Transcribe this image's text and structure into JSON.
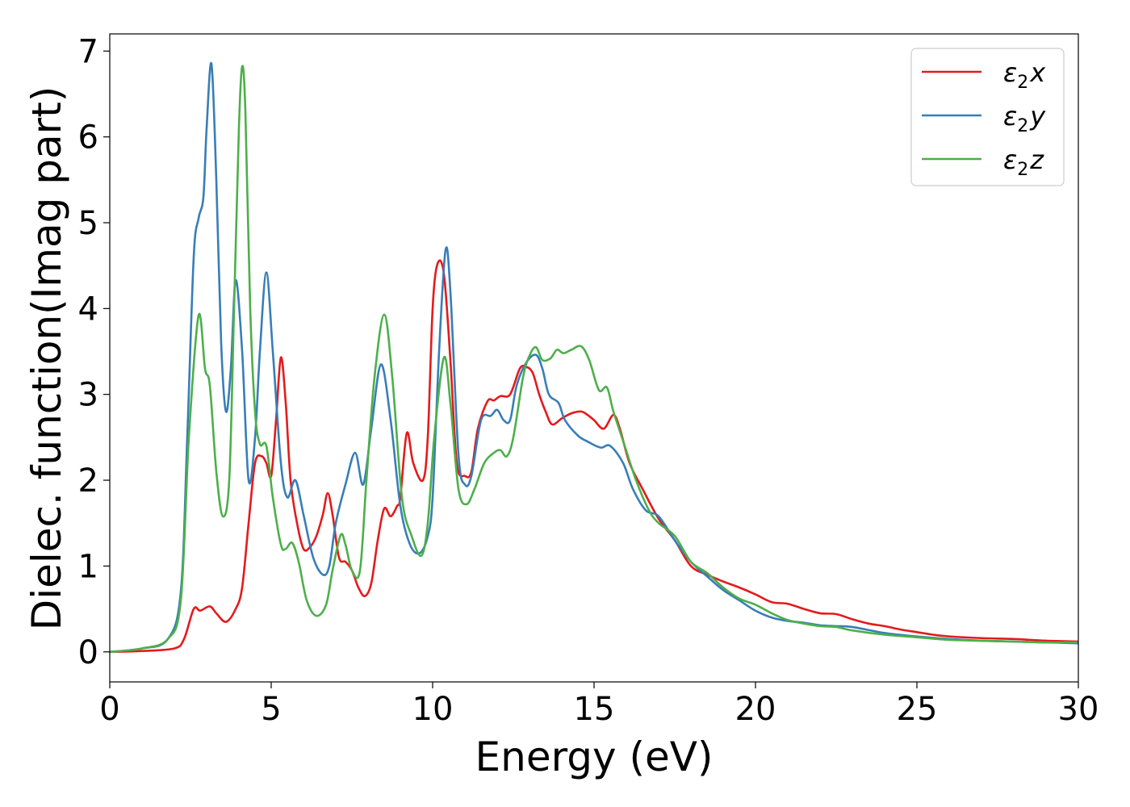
{
  "chart_data": {
    "type": "line",
    "xlabel": "Energy (eV)",
    "ylabel": "Dielec. function(Imag part)",
    "xlim": [
      0,
      30
    ],
    "ylim": [
      -0.35,
      7.2
    ],
    "xticks": [
      "0",
      "5",
      "10",
      "15",
      "20",
      "25",
      "30"
    ],
    "yticks": [
      "0",
      "1",
      "2",
      "3",
      "4",
      "5",
      "6",
      "7"
    ],
    "grid": false,
    "legend_position": "top-right",
    "series": [
      {
        "name": "ε2x",
        "legend": {
          "base": "ε",
          "sub": "2",
          "suffix": "x"
        },
        "color": "#e41a1c",
        "points": [
          [
            0,
            0
          ],
          [
            1,
            0.01
          ],
          [
            2,
            0.04
          ],
          [
            2.3,
            0.15
          ],
          [
            2.6,
            0.5
          ],
          [
            2.8,
            0.48
          ],
          [
            3.1,
            0.53
          ],
          [
            3.3,
            0.45
          ],
          [
            3.6,
            0.35
          ],
          [
            3.9,
            0.5
          ],
          [
            4.1,
            0.75
          ],
          [
            4.3,
            1.5
          ],
          [
            4.5,
            2.2
          ],
          [
            4.7,
            2.28
          ],
          [
            4.85,
            2.2
          ],
          [
            5.0,
            2.05
          ],
          [
            5.15,
            2.7
          ],
          [
            5.3,
            3.43
          ],
          [
            5.45,
            2.9
          ],
          [
            5.6,
            2.0
          ],
          [
            5.8,
            1.5
          ],
          [
            6.0,
            1.2
          ],
          [
            6.2,
            1.22
          ],
          [
            6.4,
            1.35
          ],
          [
            6.6,
            1.6
          ],
          [
            6.75,
            1.85
          ],
          [
            6.9,
            1.6
          ],
          [
            7.1,
            1.1
          ],
          [
            7.3,
            1.05
          ],
          [
            7.5,
            0.95
          ],
          [
            7.7,
            0.75
          ],
          [
            7.9,
            0.65
          ],
          [
            8.1,
            0.8
          ],
          [
            8.3,
            1.3
          ],
          [
            8.5,
            1.67
          ],
          [
            8.7,
            1.58
          ],
          [
            8.9,
            1.7
          ],
          [
            9.0,
            1.8
          ],
          [
            9.2,
            2.55
          ],
          [
            9.4,
            2.2
          ],
          [
            9.7,
            2.0
          ],
          [
            9.85,
            2.5
          ],
          [
            10.0,
            4.0
          ],
          [
            10.15,
            4.52
          ],
          [
            10.35,
            4.4
          ],
          [
            10.55,
            3.4
          ],
          [
            10.75,
            2.2
          ],
          [
            11.0,
            2.05
          ],
          [
            11.2,
            2.1
          ],
          [
            11.4,
            2.6
          ],
          [
            11.7,
            2.92
          ],
          [
            11.9,
            2.93
          ],
          [
            12.1,
            2.98
          ],
          [
            12.4,
            3.0
          ],
          [
            12.7,
            3.3
          ],
          [
            12.9,
            3.32
          ],
          [
            13.1,
            3.25
          ],
          [
            13.3,
            3.0
          ],
          [
            13.5,
            2.8
          ],
          [
            13.7,
            2.65
          ],
          [
            14.0,
            2.72
          ],
          [
            14.3,
            2.78
          ],
          [
            14.6,
            2.8
          ],
          [
            14.8,
            2.76
          ],
          [
            15.0,
            2.7
          ],
          [
            15.3,
            2.6
          ],
          [
            15.6,
            2.76
          ],
          [
            15.8,
            2.6
          ],
          [
            16.1,
            2.2
          ],
          [
            16.5,
            1.9
          ],
          [
            17.0,
            1.55
          ],
          [
            17.5,
            1.3
          ],
          [
            18.0,
            1.0
          ],
          [
            18.5,
            0.9
          ],
          [
            19.0,
            0.82
          ],
          [
            19.5,
            0.75
          ],
          [
            20.0,
            0.67
          ],
          [
            20.5,
            0.58
          ],
          [
            21.0,
            0.56
          ],
          [
            21.5,
            0.5
          ],
          [
            22.0,
            0.45
          ],
          [
            22.5,
            0.44
          ],
          [
            23.0,
            0.38
          ],
          [
            23.5,
            0.33
          ],
          [
            24.0,
            0.3
          ],
          [
            24.5,
            0.26
          ],
          [
            25.0,
            0.23
          ],
          [
            25.5,
            0.2
          ],
          [
            26.0,
            0.18
          ],
          [
            27.0,
            0.16
          ],
          [
            28.0,
            0.15
          ],
          [
            29.0,
            0.13
          ],
          [
            30.0,
            0.12
          ]
        ]
      },
      {
        "name": "ε2y",
        "legend": {
          "base": "ε",
          "sub": "2",
          "suffix": "y"
        },
        "color": "#377eb8",
        "points": [
          [
            0,
            0
          ],
          [
            1,
            0.04
          ],
          [
            1.8,
            0.15
          ],
          [
            2.2,
            0.7
          ],
          [
            2.4,
            2.5
          ],
          [
            2.6,
            4.6
          ],
          [
            2.75,
            5.05
          ],
          [
            2.9,
            5.3
          ],
          [
            3.0,
            6.1
          ],
          [
            3.15,
            6.85
          ],
          [
            3.3,
            5.5
          ],
          [
            3.45,
            3.6
          ],
          [
            3.6,
            2.8
          ],
          [
            3.75,
            3.3
          ],
          [
            3.9,
            4.33
          ],
          [
            4.1,
            3.5
          ],
          [
            4.3,
            2.0
          ],
          [
            4.5,
            2.5
          ],
          [
            4.65,
            3.5
          ],
          [
            4.85,
            4.42
          ],
          [
            5.05,
            3.5
          ],
          [
            5.3,
            2.2
          ],
          [
            5.5,
            1.8
          ],
          [
            5.75,
            2.0
          ],
          [
            6.0,
            1.6
          ],
          [
            6.3,
            1.1
          ],
          [
            6.6,
            0.9
          ],
          [
            6.8,
            1.0
          ],
          [
            7.0,
            1.5
          ],
          [
            7.3,
            1.95
          ],
          [
            7.6,
            2.32
          ],
          [
            7.85,
            1.95
          ],
          [
            8.1,
            2.6
          ],
          [
            8.4,
            3.35
          ],
          [
            8.7,
            2.7
          ],
          [
            9.0,
            1.7
          ],
          [
            9.3,
            1.25
          ],
          [
            9.6,
            1.15
          ],
          [
            9.85,
            1.35
          ],
          [
            10.0,
            1.8
          ],
          [
            10.2,
            3.5
          ],
          [
            10.4,
            4.68
          ],
          [
            10.55,
            4.2
          ],
          [
            10.8,
            2.3
          ],
          [
            11.0,
            1.95
          ],
          [
            11.2,
            2.05
          ],
          [
            11.5,
            2.7
          ],
          [
            11.8,
            2.75
          ],
          [
            12.0,
            2.82
          ],
          [
            12.2,
            2.7
          ],
          [
            12.4,
            2.7
          ],
          [
            12.6,
            3.1
          ],
          [
            12.9,
            3.37
          ],
          [
            13.2,
            3.46
          ],
          [
            13.4,
            3.3
          ],
          [
            13.6,
            3.0
          ],
          [
            13.9,
            2.9
          ],
          [
            14.1,
            2.7
          ],
          [
            14.5,
            2.52
          ],
          [
            14.8,
            2.45
          ],
          [
            15.2,
            2.38
          ],
          [
            15.5,
            2.4
          ],
          [
            15.9,
            2.2
          ],
          [
            16.2,
            1.9
          ],
          [
            16.6,
            1.65
          ],
          [
            17.0,
            1.58
          ],
          [
            17.5,
            1.3
          ],
          [
            18.0,
            1.05
          ],
          [
            18.5,
            0.88
          ],
          [
            19.0,
            0.72
          ],
          [
            19.5,
            0.6
          ],
          [
            20.0,
            0.48
          ],
          [
            20.5,
            0.4
          ],
          [
            21.0,
            0.36
          ],
          [
            21.5,
            0.34
          ],
          [
            22.0,
            0.31
          ],
          [
            22.5,
            0.3
          ],
          [
            23.0,
            0.29
          ],
          [
            24.0,
            0.22
          ],
          [
            25.0,
            0.18
          ],
          [
            26.0,
            0.15
          ],
          [
            27.0,
            0.13
          ],
          [
            28.0,
            0.12
          ],
          [
            29.0,
            0.11
          ],
          [
            30.0,
            0.1
          ]
        ]
      },
      {
        "name": "ε2z",
        "legend": {
          "base": "ε",
          "sub": "2",
          "suffix": "z"
        },
        "color": "#4daf4a",
        "points": [
          [
            0,
            0
          ],
          [
            1,
            0.04
          ],
          [
            1.8,
            0.15
          ],
          [
            2.2,
            0.6
          ],
          [
            2.45,
            2.5
          ],
          [
            2.75,
            3.92
          ],
          [
            2.95,
            3.3
          ],
          [
            3.1,
            3.1
          ],
          [
            3.3,
            2.1
          ],
          [
            3.5,
            1.58
          ],
          [
            3.7,
            2.0
          ],
          [
            3.85,
            4.0
          ],
          [
            4.0,
            6.1
          ],
          [
            4.1,
            6.82
          ],
          [
            4.2,
            6.3
          ],
          [
            4.35,
            4.0
          ],
          [
            4.5,
            2.8
          ],
          [
            4.65,
            2.42
          ],
          [
            4.85,
            2.4
          ],
          [
            5.05,
            1.8
          ],
          [
            5.3,
            1.25
          ],
          [
            5.45,
            1.2
          ],
          [
            5.65,
            1.27
          ],
          [
            5.85,
            1.05
          ],
          [
            6.1,
            0.6
          ],
          [
            6.4,
            0.42
          ],
          [
            6.7,
            0.55
          ],
          [
            6.9,
            0.95
          ],
          [
            7.15,
            1.36
          ],
          [
            7.3,
            1.25
          ],
          [
            7.5,
            0.95
          ],
          [
            7.75,
            0.95
          ],
          [
            7.95,
            2.0
          ],
          [
            8.2,
            3.2
          ],
          [
            8.5,
            3.93
          ],
          [
            8.75,
            3.2
          ],
          [
            9.05,
            1.8
          ],
          [
            9.35,
            1.35
          ],
          [
            9.65,
            1.12
          ],
          [
            9.85,
            1.5
          ],
          [
            10.05,
            2.5
          ],
          [
            10.35,
            3.43
          ],
          [
            10.55,
            2.9
          ],
          [
            10.8,
            1.9
          ],
          [
            11.05,
            1.72
          ],
          [
            11.3,
            1.9
          ],
          [
            11.6,
            2.2
          ],
          [
            11.9,
            2.32
          ],
          [
            12.1,
            2.35
          ],
          [
            12.3,
            2.28
          ],
          [
            12.5,
            2.5
          ],
          [
            12.8,
            3.2
          ],
          [
            13.0,
            3.45
          ],
          [
            13.2,
            3.55
          ],
          [
            13.4,
            3.4
          ],
          [
            13.65,
            3.42
          ],
          [
            13.85,
            3.52
          ],
          [
            14.05,
            3.48
          ],
          [
            14.3,
            3.52
          ],
          [
            14.6,
            3.56
          ],
          [
            14.85,
            3.4
          ],
          [
            15.15,
            3.05
          ],
          [
            15.4,
            3.08
          ],
          [
            15.6,
            2.8
          ],
          [
            15.95,
            2.4
          ],
          [
            16.3,
            2.0
          ],
          [
            16.7,
            1.65
          ],
          [
            17.0,
            1.5
          ],
          [
            17.5,
            1.35
          ],
          [
            18.0,
            1.05
          ],
          [
            18.5,
            0.92
          ],
          [
            19.0,
            0.75
          ],
          [
            19.5,
            0.62
          ],
          [
            20.0,
            0.55
          ],
          [
            20.5,
            0.45
          ],
          [
            21.0,
            0.37
          ],
          [
            21.5,
            0.33
          ],
          [
            22.0,
            0.3
          ],
          [
            22.5,
            0.29
          ],
          [
            23.0,
            0.25
          ],
          [
            24.0,
            0.2
          ],
          [
            25.0,
            0.17
          ],
          [
            26.0,
            0.14
          ],
          [
            27.0,
            0.13
          ],
          [
            28.0,
            0.12
          ],
          [
            29.0,
            0.11
          ],
          [
            30.0,
            0.11
          ]
        ]
      }
    ]
  }
}
